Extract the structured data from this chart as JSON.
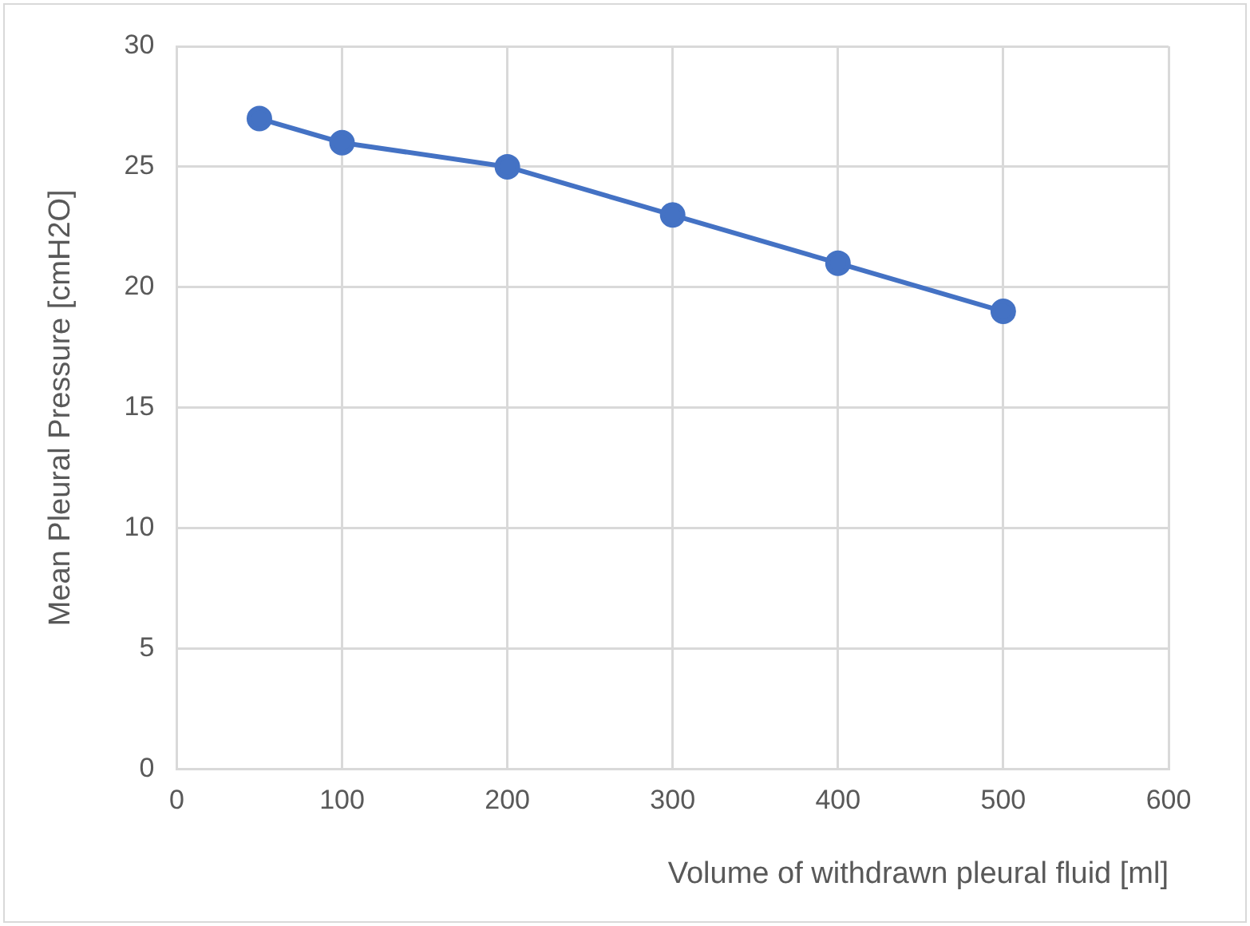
{
  "chart_data": {
    "type": "line",
    "xlabel": "Volume of withdrawn pleural fluid [ml]",
    "ylabel": "Mean Pleural Pressure [cmH2O]",
    "x": [
      50,
      100,
      200,
      300,
      400,
      500
    ],
    "series": [
      {
        "color": "#4472c4",
        "values": [
          27,
          26,
          25,
          23,
          21,
          19
        ]
      }
    ],
    "xlim": [
      0,
      600
    ],
    "xticks": [
      0,
      100,
      200,
      300,
      400,
      500,
      600
    ],
    "ylim": [
      0,
      30
    ],
    "yticks": [
      0,
      5,
      10,
      15,
      20,
      25,
      30
    ],
    "grid": true,
    "legend": false,
    "marker": "circle",
    "line_style": "solid"
  }
}
